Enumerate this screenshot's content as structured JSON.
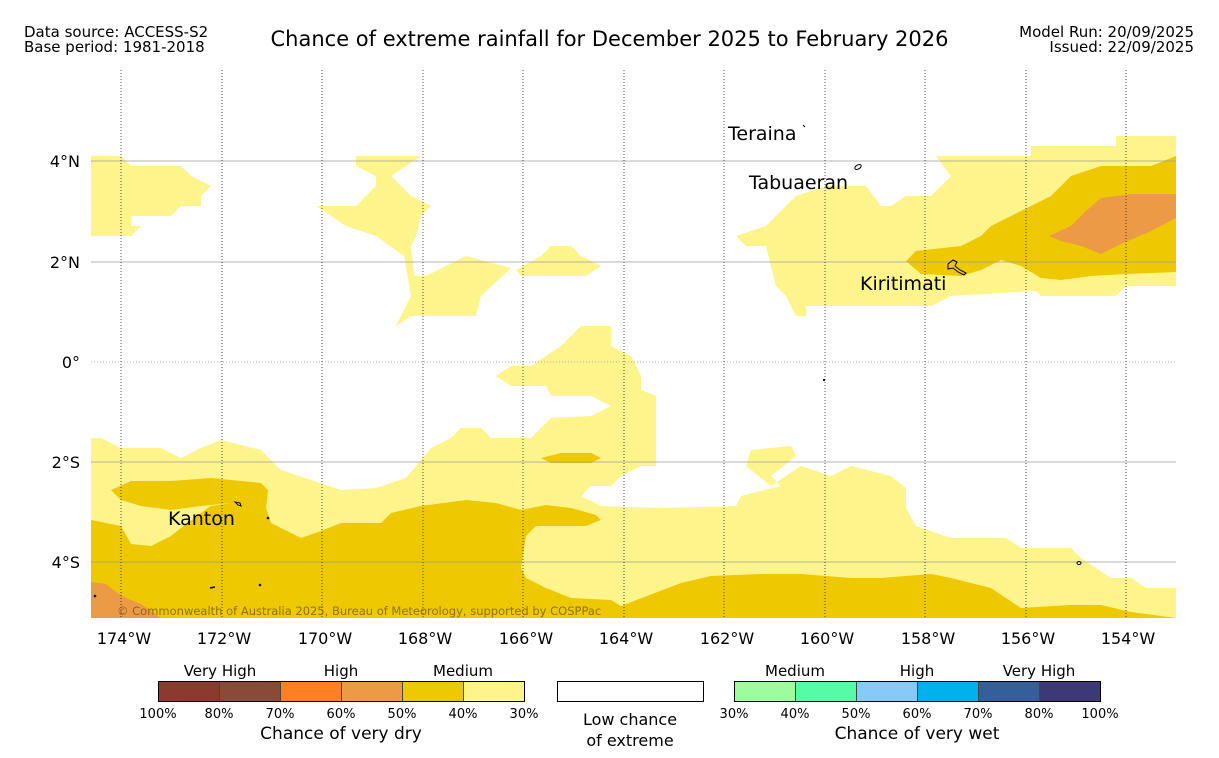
{
  "header": {
    "data_source": "Data source: ACCESS-S2",
    "base_period": "Base period: 1981-2018",
    "title": "Chance of extreme rainfall for December 2025 to February 2026",
    "model_run": "Model Run: 20/09/2025",
    "issued": "Issued: 22/09/2025"
  },
  "map": {
    "lat_labels": [
      "4°N",
      "2°N",
      "0°",
      "2°S",
      "4°S"
    ],
    "lon_labels": [
      "174°W",
      "172°W",
      "170°W",
      "168°W",
      "166°W",
      "164°W",
      "162°W",
      "160°W",
      "158°W",
      "156°W",
      "154°W"
    ],
    "places": {
      "teraina": "Teraina",
      "tabuaeran": "Tabuaeran",
      "kiritimati": "Kiritimati",
      "kanton": "Kanton"
    },
    "copyright": "© Commonwealth of Australia 2025, Bureau of Meteorology, supported by COSPPac",
    "colors": {
      "medium_dry_light": "#fdf48c",
      "medium_dry": "#eec800",
      "high_dry_light": "#ec9a45",
      "water": "#ffffff"
    }
  },
  "legend": {
    "dry": {
      "headers": [
        "Very High",
        "High",
        "Medium"
      ],
      "colors": [
        "#8b3a2e",
        "#8a4a38",
        "#ff7f24",
        "#ec9a45",
        "#eec800",
        "#fdf48c"
      ],
      "ticks": [
        "100%",
        "80%",
        "70%",
        "60%",
        "50%",
        "40%",
        "30%"
      ],
      "title": "Chance of very dry"
    },
    "low": {
      "line1": "Low chance",
      "line2": "of extreme",
      "color": "#ffffff"
    },
    "wet": {
      "headers": [
        "Medium",
        "High",
        "Very High"
      ],
      "colors": [
        "#9dfc9c",
        "#55fba5",
        "#87cafa",
        "#00b1ea",
        "#355f9a",
        "#3e3877"
      ],
      "ticks": [
        "30%",
        "40%",
        "50%",
        "60%",
        "70%",
        "80%",
        "100%"
      ],
      "title": "Chance of very wet"
    }
  }
}
